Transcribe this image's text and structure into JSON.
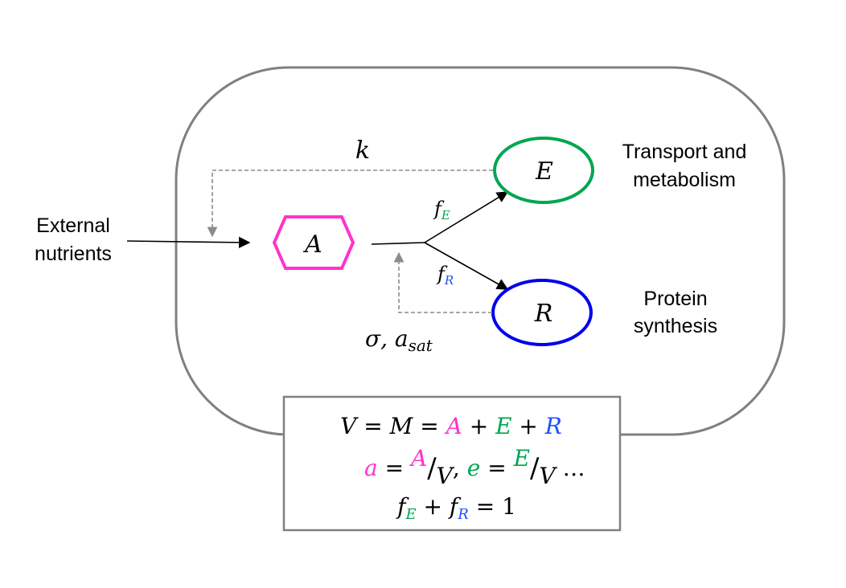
{
  "labels": {
    "external_line1": "External",
    "external_line2": "nutrients",
    "transport_line1": "Transport and",
    "transport_line2": "metabolism",
    "protein_line1": "Protein",
    "protein_line2": "synthesis"
  },
  "nodes": {
    "a": "A",
    "e": "E",
    "r": "R"
  },
  "params": {
    "k": "k",
    "f_main": "f",
    "f_e_sub": "E",
    "f_r_sub": "R",
    "sigma": "σ, a",
    "sigma_sub": "sat"
  },
  "equations": {
    "line1": {
      "v": "V",
      "eq1": " = ",
      "m": "M",
      "eq2": " = ",
      "a": "A",
      "plus1": " + ",
      "e": "E",
      "plus2": " + ",
      "r": "R"
    },
    "line2": {
      "a_lower": "a",
      "eq1": " = ",
      "a_upper": "A",
      "slash1": "/",
      "v1": "V",
      "comma": ", ",
      "e_lower": "e",
      "eq2": " = ",
      "e_upper": "E",
      "slash2": "/",
      "v2": "V",
      "ellipsis": " …"
    },
    "line3": {
      "f1": "f",
      "sub_e": "E",
      "plus": " + ",
      "f2": "f",
      "sub_r": "R",
      "eq": " = 1"
    }
  },
  "colors": {
    "a": "#ff33cc",
    "e": "#00a651",
    "r": "#0000ee",
    "r_text": "#1f4fff",
    "cell": "#808080",
    "dashed": "#8c8c8c",
    "arrow": "#000000"
  }
}
